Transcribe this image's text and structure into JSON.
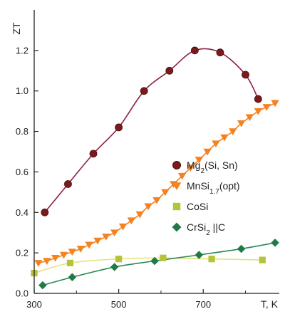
{
  "chart_data": {
    "type": "scatter",
    "xlabel": "T, K",
    "ylabel": "ZT",
    "xlim": [
      300,
      880
    ],
    "ylim": [
      0,
      1.4
    ],
    "x_ticks": [
      300,
      500,
      700
    ],
    "x_tick_labels": [
      "300",
      "500",
      "700"
    ],
    "y_ticks": [
      0.0,
      0.2,
      0.4,
      0.6,
      0.8,
      1.0,
      1.2
    ],
    "y_tick_labels": [
      "0.0",
      "0.2",
      "0.4",
      "0.6",
      "0.8",
      "1.0",
      "1.2"
    ],
    "grid": false,
    "legend_position": "right-middle",
    "series": [
      {
        "name": "Mg2(Si, Sn)",
        "label_parts": [
          {
            "t": "Mg"
          },
          {
            "t": "2",
            "sub": true
          },
          {
            "t": "(Si, Sn)"
          }
        ],
        "marker": "circle",
        "color": "#7a1a1a",
        "line_color": "#8a2040",
        "x": [
          325,
          380,
          440,
          500,
          560,
          620,
          680,
          740,
          800,
          830
        ],
        "y": [
          0.4,
          0.54,
          0.69,
          0.82,
          1.0,
          1.1,
          1.2,
          1.19,
          1.08,
          0.96
        ]
      },
      {
        "name": "MnSi1.7(opt)",
        "label_parts": [
          {
            "t": "MnSi"
          },
          {
            "t": "1.7",
            "sub": true
          },
          {
            "t": "(opt)"
          }
        ],
        "marker": "triangle-down",
        "color": "#f58220",
        "line_color": "#f58220",
        "x": [
          310,
          330,
          350,
          370,
          390,
          410,
          430,
          450,
          470,
          490,
          510,
          530,
          550,
          570,
          590,
          610,
          630,
          650,
          670,
          690,
          710,
          730,
          750,
          770,
          790,
          810,
          830,
          850,
          870
        ],
        "y": [
          0.15,
          0.16,
          0.175,
          0.19,
          0.205,
          0.22,
          0.24,
          0.26,
          0.28,
          0.3,
          0.33,
          0.36,
          0.39,
          0.43,
          0.46,
          0.5,
          0.54,
          0.58,
          0.62,
          0.66,
          0.7,
          0.74,
          0.77,
          0.8,
          0.84,
          0.87,
          0.9,
          0.92,
          0.94
        ]
      },
      {
        "name": "CoSi",
        "label_parts": [
          {
            "t": "CoSi"
          }
        ],
        "marker": "square",
        "color": "#b5c23a",
        "line_color": "#e6e27a",
        "x": [
          300,
          385,
          500,
          605,
          720,
          840
        ],
        "y": [
          0.1,
          0.15,
          0.17,
          0.175,
          0.17,
          0.165
        ]
      },
      {
        "name": "CrSi2||C",
        "label_parts": [
          {
            "t": "CrSi"
          },
          {
            "t": "2",
            "sub": true
          },
          {
            "t": " ||C"
          }
        ],
        "marker": "diamond",
        "color": "#1e7a46",
        "line_color": "#2a8a55",
        "x": [
          320,
          390,
          490,
          585,
          690,
          790,
          870
        ],
        "y": [
          0.04,
          0.08,
          0.13,
          0.16,
          0.19,
          0.22,
          0.25
        ]
      }
    ]
  }
}
